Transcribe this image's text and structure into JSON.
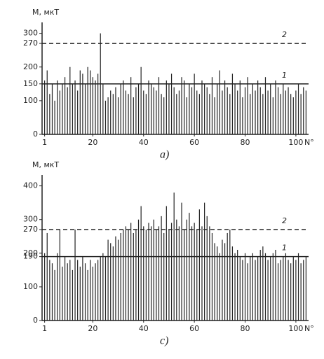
{
  "chart_data": [
    {
      "type": "bar",
      "title": "M, мкТ",
      "x_label": "N°",
      "caption": "a)",
      "color": "#222222",
      "x": [
        1,
        2,
        3,
        4,
        5,
        6,
        7,
        8,
        9,
        10,
        11,
        12,
        13,
        14,
        15,
        16,
        17,
        18,
        19,
        20,
        21,
        22,
        23,
        24,
        25,
        26,
        27,
        28,
        29,
        30,
        31,
        32,
        33,
        34,
        35,
        36,
        37,
        38,
        39,
        40,
        41,
        42,
        43,
        44,
        45,
        46,
        47,
        48,
        49,
        50,
        51,
        52,
        53,
        54,
        55,
        56,
        57,
        58,
        59,
        60,
        61,
        62,
        63,
        64,
        65,
        66,
        67,
        68,
        69,
        70,
        71,
        72,
        73,
        74,
        75,
        76,
        77,
        78,
        79,
        80,
        81,
        82,
        83,
        84,
        85,
        86,
        87,
        88,
        89,
        90,
        91,
        92,
        93,
        94,
        95,
        96,
        97,
        98,
        99,
        100,
        101,
        102,
        103,
        104
      ],
      "values": [
        160,
        190,
        120,
        150,
        100,
        160,
        130,
        150,
        170,
        140,
        200,
        150,
        160,
        130,
        190,
        180,
        150,
        200,
        190,
        170,
        160,
        180,
        300,
        150,
        100,
        110,
        130,
        120,
        140,
        110,
        150,
        160,
        130,
        120,
        170,
        110,
        140,
        150,
        200,
        130,
        120,
        160,
        150,
        140,
        130,
        170,
        120,
        110,
        160,
        150,
        180,
        140,
        120,
        130,
        170,
        160,
        110,
        150,
        140,
        180,
        130,
        120,
        160,
        150,
        140,
        120,
        170,
        110,
        150,
        190,
        130,
        160,
        140,
        120,
        180,
        150,
        130,
        160,
        110,
        140,
        170,
        120,
        150,
        130,
        160,
        140,
        120,
        170,
        130,
        150,
        110,
        160,
        140,
        120,
        150,
        130,
        140,
        120,
        110,
        130,
        150,
        120,
        140,
        130
      ],
      "xlim": [
        0,
        105
      ],
      "xticks": [
        1,
        20,
        40,
        60,
        80,
        100
      ],
      "ylim": [
        0,
        320
      ],
      "yticks": [
        0,
        100,
        150,
        200,
        270,
        300
      ],
      "reference_lines": [
        {
          "value": 270,
          "label": "2",
          "style": "dashed"
        },
        {
          "value": 150,
          "label": "1",
          "style": "solid"
        }
      ]
    },
    {
      "type": "bar",
      "title": "M, мкТ",
      "x_label": "N°",
      "caption": "c)",
      "color": "#222222",
      "x": [
        1,
        2,
        3,
        4,
        5,
        6,
        7,
        8,
        9,
        10,
        11,
        12,
        13,
        14,
        15,
        16,
        17,
        18,
        19,
        20,
        21,
        22,
        23,
        24,
        25,
        26,
        27,
        28,
        29,
        30,
        31,
        32,
        33,
        34,
        35,
        36,
        37,
        38,
        39,
        40,
        41,
        42,
        43,
        44,
        45,
        46,
        47,
        48,
        49,
        50,
        51,
        52,
        53,
        54,
        55,
        56,
        57,
        58,
        59,
        60,
        61,
        62,
        63,
        64,
        65,
        66,
        67,
        68,
        69,
        70,
        71,
        72,
        73,
        74,
        75,
        76,
        77,
        78,
        79,
        80,
        81,
        82,
        83,
        84,
        85,
        86,
        87,
        88,
        89,
        90,
        91,
        92,
        93,
        94,
        95,
        96,
        97,
        98,
        99,
        100,
        101,
        102,
        103,
        104
      ],
      "values": [
        200,
        260,
        180,
        170,
        150,
        200,
        270,
        160,
        190,
        170,
        180,
        150,
        270,
        180,
        160,
        190,
        170,
        150,
        180,
        160,
        170,
        180,
        190,
        200,
        190,
        240,
        230,
        220,
        250,
        240,
        260,
        270,
        280,
        270,
        290,
        260,
        270,
        300,
        340,
        280,
        270,
        290,
        280,
        300,
        270,
        280,
        310,
        260,
        340,
        270,
        290,
        380,
        300,
        280,
        350,
        270,
        300,
        320,
        280,
        290,
        270,
        330,
        280,
        350,
        310,
        280,
        260,
        230,
        220,
        200,
        240,
        230,
        260,
        270,
        220,
        200,
        210,
        190,
        180,
        200,
        170,
        190,
        200,
        180,
        190,
        210,
        220,
        200,
        180,
        190,
        200,
        210,
        170,
        180,
        190,
        200,
        180,
        170,
        190,
        180,
        200,
        170,
        180,
        190
      ],
      "xlim": [
        0,
        105
      ],
      "xticks": [
        1,
        20,
        40,
        60,
        80,
        100
      ],
      "ylim": [
        0,
        420
      ],
      "yticks": [
        0,
        100,
        190,
        200,
        270,
        300,
        400
      ],
      "reference_lines": [
        {
          "value": 270,
          "label": "2",
          "style": "dashed"
        },
        {
          "value": 190,
          "label": "1",
          "style": "solid"
        }
      ]
    }
  ]
}
